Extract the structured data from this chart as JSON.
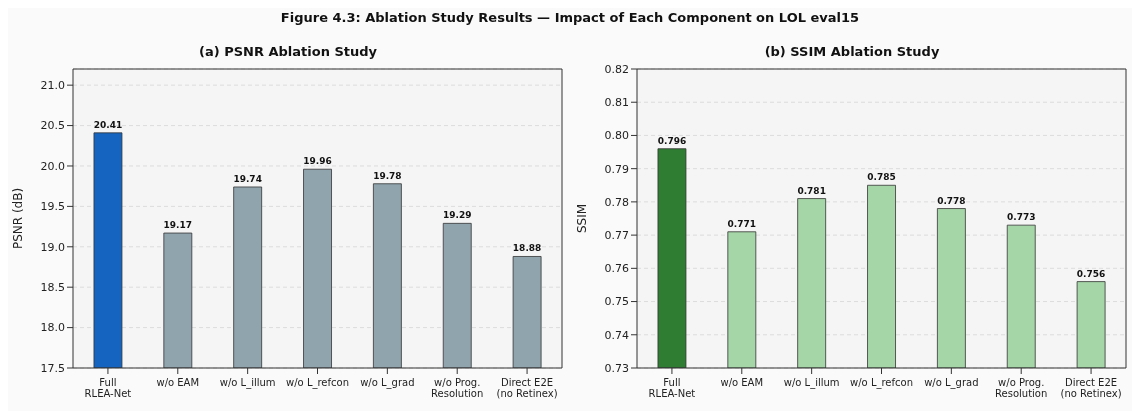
{
  "chart_data": [
    {
      "type": "bar",
      "title": "(a) PSNR Ablation Study",
      "ylabel": "PSNR (dB)",
      "annotations": [
        "Figure 4.3: Ablation Study Results — Impact of Each Component on LOL eval15"
      ],
      "categories": [
        "Full\nRLEA-Net",
        "w/o EAM",
        "w/o L_illum",
        "w/o L_refcon",
        "w/o L_grad",
        "w/o Prog.\nResolution",
        "Direct E2E\n(no Retinex)"
      ],
      "values": [
        20.41,
        19.17,
        19.74,
        19.96,
        19.78,
        19.29,
        18.88
      ],
      "colors": [
        "#1565c0",
        "#90a4ae",
        "#90a4ae",
        "#90a4ae",
        "#90a4ae",
        "#90a4ae",
        "#90a4ae"
      ],
      "ylim": [
        17.5,
        21.2
      ],
      "yticks": [
        17.5,
        {
          "value": 18,
          "label": "18.0"
        },
        18.5,
        {
          "value": 19,
          "label": "19.0"
        },
        19.5,
        {
          "value": 20,
          "label": "20.0"
        },
        20.5,
        {
          "value": 21,
          "label": "21.0"
        }
      ],
      "grid": "y",
      "data_labels": true
    },
    {
      "type": "bar",
      "title": "(b) SSIM Ablation Study",
      "ylabel": "SSIM",
      "categories": [
        "Full\nRLEA-Net",
        "w/o EAM",
        "w/o L_illum",
        "w/o L_refcon",
        "w/o L_grad",
        "w/o Prog.\nResolution",
        "Direct E2E\n(no Retinex)"
      ],
      "values": [
        0.796,
        0.771,
        0.781,
        0.785,
        0.778,
        0.773,
        0.756
      ],
      "colors": [
        "#2e7d32",
        "#a5d6a7",
        "#a5d6a7",
        "#a5d6a7",
        "#a5d6a7",
        "#a5d6a7",
        "#a5d6a7"
      ],
      "ylim": [
        0.73,
        0.82
      ],
      "yticks": [
        0.73,
        0.74,
        0.75,
        0.76,
        0.77,
        0.78,
        0.79,
        {
          "value": 0.8,
          "label": "0.80"
        },
        0.81,
        0.82
      ],
      "grid": "y",
      "data_labels": true
    }
  ]
}
